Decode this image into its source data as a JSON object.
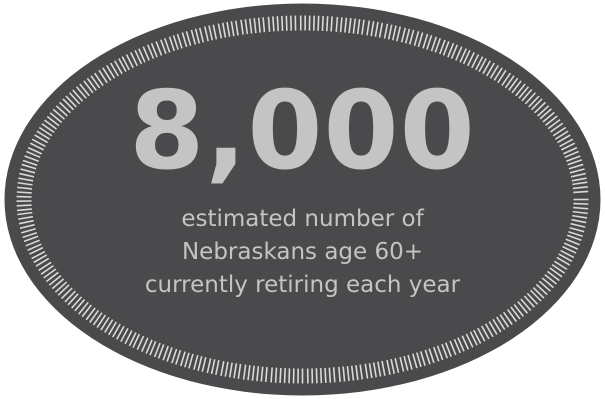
{
  "badge": {
    "stat": "8,000",
    "caption_lines": [
      "estimated number of",
      "Nebraskans age 60+",
      "currently retiring each year"
    ]
  },
  "colors": {
    "background": "#ffffff",
    "badge_fill": "#4a4a4c",
    "text": "#c4c4c4",
    "tick": "#d9d9d9"
  }
}
